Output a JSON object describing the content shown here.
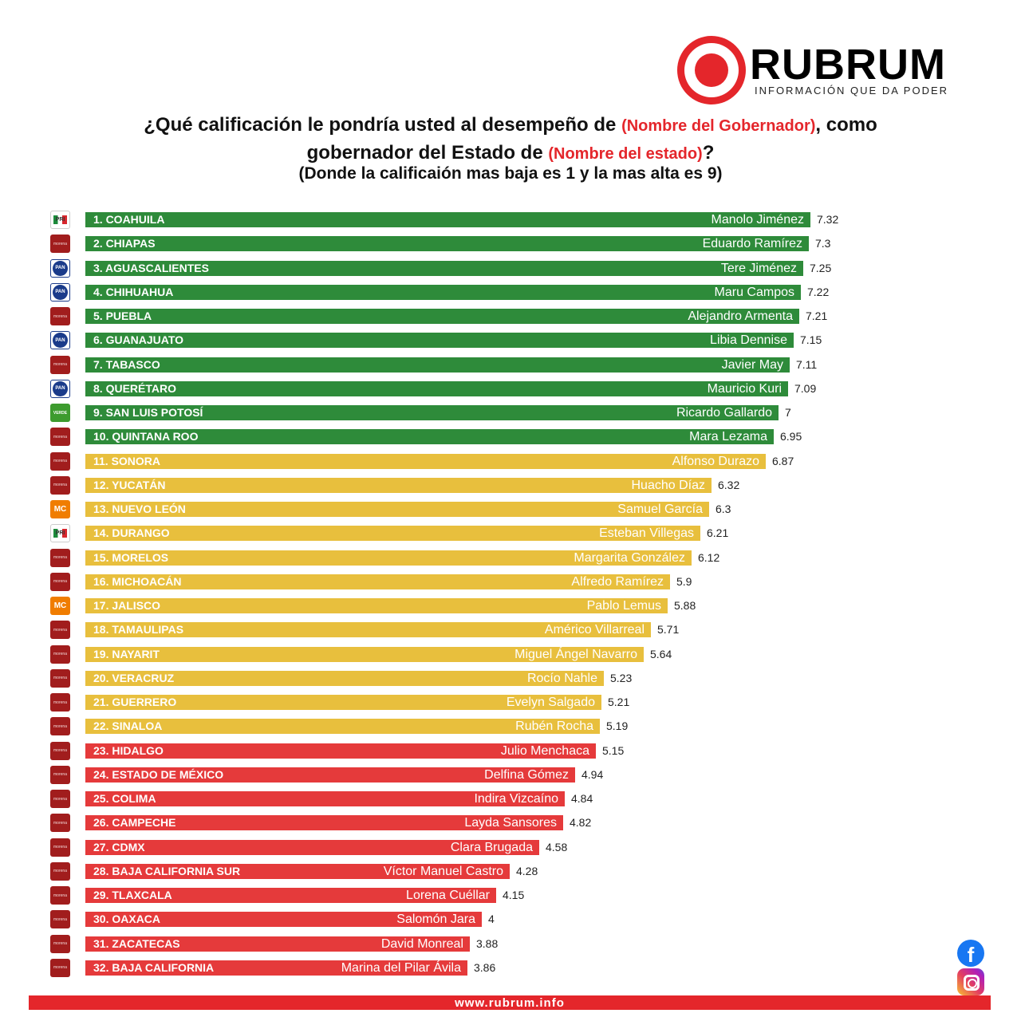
{
  "brand": {
    "name": "RUBRUM",
    "tagline": "INFORMACIÓN QUE DA PODER",
    "color": "#e4262b"
  },
  "question": {
    "line1_a": "¿Qué calificación le pondría usted al desempeño de ",
    "line1_red": "(Nombre del Gobernador)",
    "line1_b": ", como",
    "line2_a": "gobernador del Estado de ",
    "line2_red": "(Nombre del estado)",
    "line2_b": "?",
    "line3": "(Donde la calificaión mas baja es 1 y la mas alta es 9)"
  },
  "chart_data": {
    "type": "bar",
    "orientation": "horizontal",
    "value_range": [
      0,
      9
    ],
    "colors": {
      "green": "#2e8b3a",
      "yellow": "#e8bf3d",
      "red": "#e53a3b"
    },
    "rows": [
      {
        "label": "1. COAHUILA",
        "governor": "Manolo Jiménez",
        "value": 7.32,
        "value_text": "7.32",
        "party": "pri",
        "color": "green"
      },
      {
        "label": "2. CHIAPAS",
        "governor": "Eduardo Ramírez",
        "value": 7.3,
        "value_text": "7.3",
        "party": "morena",
        "color": "green"
      },
      {
        "label": "3. AGUASCALIENTES",
        "governor": "Tere Jiménez",
        "value": 7.25,
        "value_text": "7.25",
        "party": "pan",
        "color": "green"
      },
      {
        "label": "4. CHIHUAHUA",
        "governor": "Maru Campos",
        "value": 7.22,
        "value_text": "7.22",
        "party": "pan",
        "color": "green"
      },
      {
        "label": "5. PUEBLA",
        "governor": "Alejandro Armenta",
        "value": 7.21,
        "value_text": "7.21",
        "party": "morena",
        "color": "green"
      },
      {
        "label": "6. GUANAJUATO",
        "governor": "Libia Dennise",
        "value": 7.15,
        "value_text": "7.15",
        "party": "pan",
        "color": "green"
      },
      {
        "label": "7. TABASCO",
        "governor": "Javier May",
        "value": 7.11,
        "value_text": "7.11",
        "party": "morena",
        "color": "green"
      },
      {
        "label": "8. QUERÉTARO",
        "governor": "Mauricio Kuri",
        "value": 7.09,
        "value_text": "7.09",
        "party": "pan",
        "color": "green"
      },
      {
        "label": "9. SAN LUIS POTOSÍ",
        "governor": "Ricardo Gallardo",
        "value": 7,
        "value_text": "7",
        "party": "verde",
        "color": "green"
      },
      {
        "label": "10. QUINTANA ROO",
        "governor": "Mara Lezama",
        "value": 6.95,
        "value_text": "6.95",
        "party": "morena",
        "color": "green"
      },
      {
        "label": "11. SONORA",
        "governor": "Alfonso Durazo",
        "value": 6.87,
        "value_text": "6.87",
        "party": "morena",
        "color": "yellow"
      },
      {
        "label": "12. YUCATÁN",
        "governor": "Huacho Díaz",
        "value": 6.32,
        "value_text": "6.32",
        "party": "morena",
        "color": "yellow"
      },
      {
        "label": "13. NUEVO LEÓN",
        "governor": "Samuel García",
        "value": 6.3,
        "value_text": "6.3",
        "party": "mc",
        "color": "yellow"
      },
      {
        "label": "14. DURANGO",
        "governor": "Esteban Villegas",
        "value": 6.21,
        "value_text": "6.21",
        "party": "pri",
        "color": "yellow"
      },
      {
        "label": "15. MORELOS",
        "governor": "Margarita González",
        "value": 6.12,
        "value_text": "6.12",
        "party": "morena",
        "color": "yellow"
      },
      {
        "label": "16. MICHOACÁN",
        "governor": "Alfredo Ramírez",
        "value": 5.9,
        "value_text": "5.9",
        "party": "morena",
        "color": "yellow"
      },
      {
        "label": "17. JALISCO",
        "governor": "Pablo Lemus",
        "value": 5.88,
        "value_text": "5.88",
        "party": "mc",
        "color": "yellow"
      },
      {
        "label": "18. TAMAULIPAS",
        "governor": "Américo Villarreal",
        "value": 5.71,
        "value_text": "5.71",
        "party": "morena",
        "color": "yellow"
      },
      {
        "label": "19. NAYARIT",
        "governor": "Miguel Ángel Navarro",
        "value": 5.64,
        "value_text": "5.64",
        "party": "morena",
        "color": "yellow"
      },
      {
        "label": "20. VERACRUZ",
        "governor": "Rocío Nahle",
        "value": 5.23,
        "value_text": "5.23",
        "party": "morena",
        "color": "yellow"
      },
      {
        "label": "21. GUERRERO",
        "governor": "Evelyn Salgado",
        "value": 5.21,
        "value_text": "5.21",
        "party": "morena",
        "color": "yellow"
      },
      {
        "label": "22. SINALOA",
        "governor": "Rubén Rocha",
        "value": 5.19,
        "value_text": "5.19",
        "party": "morena",
        "color": "yellow"
      },
      {
        "label": "23. HIDALGO",
        "governor": "Julio Menchaca",
        "value": 5.15,
        "value_text": "5.15",
        "party": "morena",
        "color": "red"
      },
      {
        "label": "24. ESTADO DE MÉXICO",
        "governor": "Delfina Gómez",
        "value": 4.94,
        "value_text": "4.94",
        "party": "morena",
        "color": "red"
      },
      {
        "label": "25. COLIMA",
        "governor": "Indira Vizcaíno",
        "value": 4.84,
        "value_text": "4.84",
        "party": "morena",
        "color": "red"
      },
      {
        "label": "26. CAMPECHE",
        "governor": "Layda Sansores",
        "value": 4.82,
        "value_text": "4.82",
        "party": "morena",
        "color": "red"
      },
      {
        "label": "27. CDMX",
        "governor": "Clara Brugada",
        "value": 4.58,
        "value_text": "4.58",
        "party": "morena",
        "color": "red"
      },
      {
        "label": "28. BAJA CALIFORNIA SUR",
        "governor": "Víctor Manuel Castro",
        "value": 4.28,
        "value_text": "4.28",
        "party": "morena",
        "color": "red"
      },
      {
        "label": "29. TLAXCALA",
        "governor": "Lorena Cuéllar",
        "value": 4.15,
        "value_text": "4.15",
        "party": "morena",
        "color": "red"
      },
      {
        "label": "30. OAXACA",
        "governor": "Salomón Jara",
        "value": 4,
        "value_text": "4",
        "party": "morena",
        "color": "red"
      },
      {
        "label": "31. ZACATECAS",
        "governor": "David Monreal",
        "value": 3.88,
        "value_text": "3.88",
        "party": "morena",
        "color": "red"
      },
      {
        "label": "32. BAJA CALIFORNIA",
        "governor": "Marina del Pilar Ávila",
        "value": 3.86,
        "value_text": "3.86",
        "party": "morena",
        "color": "red"
      }
    ]
  },
  "party_labels": {
    "morena": "morena",
    "pan": "PAN",
    "pri": "PRI",
    "mc": "MC",
    "verde": "VERDE"
  },
  "footer": {
    "url": "www.rubrum.info"
  },
  "social": {
    "facebook_icon": "facebook-icon",
    "instagram_icon": "instagram-icon"
  }
}
